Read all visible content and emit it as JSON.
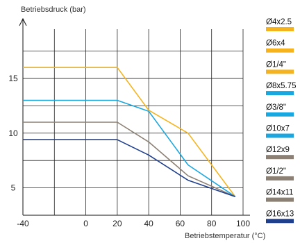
{
  "chart_data": {
    "type": "line",
    "ylabel": "Betriebsdruck (bar)",
    "xlabel": "Betriebstemperatur (°C)",
    "xlim": [
      -40,
      100
    ],
    "ylim": [
      2.5,
      19.5
    ],
    "x_ticks": [
      "-40",
      "0",
      "20",
      "40",
      "60",
      "80",
      "100"
    ],
    "x_tick_values": [
      -40,
      0,
      20,
      40,
      60,
      80,
      100
    ],
    "y_ticks": [
      "5",
      "10",
      "15"
    ],
    "y_tick_values": [
      5,
      10,
      15
    ],
    "grid": true,
    "legend_position": "right",
    "series": [
      {
        "color": "#f5b41e",
        "x": [
          -40,
          20,
          40,
          65,
          95
        ],
        "y": [
          16,
          16,
          12.1,
          10,
          4.2
        ]
      },
      {
        "color": "#1aa6df",
        "x": [
          -40,
          20,
          40,
          65,
          95
        ],
        "y": [
          13,
          13,
          12,
          7.1,
          4.2
        ]
      },
      {
        "color": "#8c8074",
        "x": [
          -40,
          20,
          40,
          65,
          95
        ],
        "y": [
          11,
          11,
          9.2,
          6.1,
          4.2
        ]
      },
      {
        "color": "#1f3f8c",
        "x": [
          -40,
          20,
          40,
          65,
          95
        ],
        "y": [
          9.4,
          9.4,
          8,
          5.7,
          4.2
        ]
      }
    ],
    "legend": [
      {
        "label": "Ø4x2.5",
        "color": "#f5b41e"
      },
      {
        "label": "Ø6x4",
        "color": "#f5b41e"
      },
      {
        "label": "Ø1/4\"",
        "color": "#f5b41e"
      },
      {
        "label": "Ø8x5.75",
        "color": "#1aa6df"
      },
      {
        "label": "Ø3/8\"",
        "color": "#1aa6df"
      },
      {
        "label": "Ø10x7",
        "color": "#1aa6df"
      },
      {
        "label": "Ø12x9",
        "color": "#8c8074"
      },
      {
        "label": "Ø1/2\"",
        "color": "#8c8074"
      },
      {
        "label": "Ø14x11",
        "color": "#8c8074"
      },
      {
        "label": "Ø16x13",
        "color": "#1f3f8c"
      }
    ]
  }
}
